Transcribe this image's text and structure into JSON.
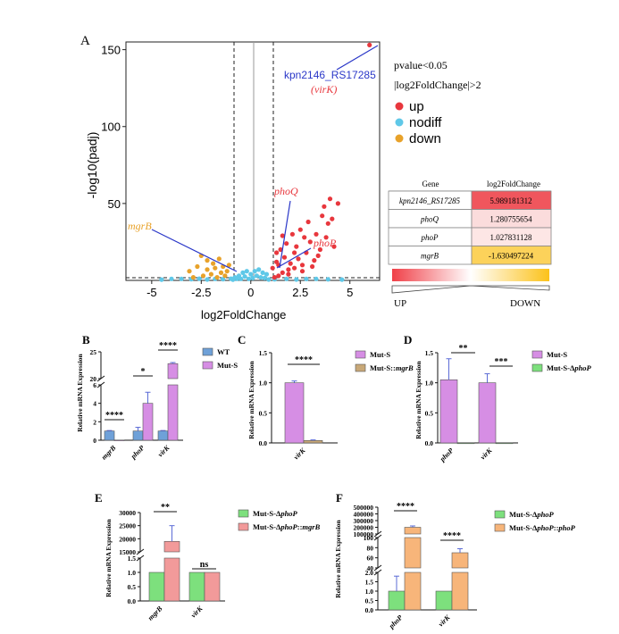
{
  "panel_letters": [
    "A",
    "B",
    "C",
    "D",
    "E",
    "F"
  ],
  "chart_data": [
    {
      "panel": "A",
      "type": "scatter",
      "xlabel": "log2FoldChange",
      "ylabel": "-log10(padj)",
      "xlim": [
        -6.3,
        6.5
      ],
      "ylim": [
        0,
        155
      ],
      "xticks": [
        -5,
        -2.5,
        0,
        2.5,
        5
      ],
      "xtick_labels": [
        "-5",
        "-2.5",
        "0",
        "2.5",
        "5"
      ],
      "yticks": [
        50,
        100,
        150
      ],
      "ytick_labels": [
        "50",
        "100",
        "150"
      ],
      "thresholds": {
        "x": [
          -1,
          1
        ],
        "y": 1.3
      },
      "legend": {
        "lines": [
          "pvalue<0.05",
          "|log2FoldChange|>2"
        ],
        "entries": [
          {
            "label": "up",
            "color": "#e8373d"
          },
          {
            "label": "nodiff",
            "color": "#5fc8e8"
          },
          {
            "label": "down",
            "color": "#e8a22a"
          }
        ]
      },
      "annotations": [
        {
          "text": "kpn2146_RS17285",
          "color": "#2a37c8"
        },
        {
          "text": "(virK)",
          "color": "#e8373d"
        },
        {
          "text": "phoQ",
          "color": "#e8373d"
        },
        {
          "text": "phoP",
          "color": "#e8373d"
        },
        {
          "text": "mgrB",
          "color": "#e8a22a"
        }
      ],
      "highlight_points": [
        {
          "label": "kpn2146_RS17285",
          "x": 5.99,
          "y": 153
        },
        {
          "label": "phoQ",
          "x": 1.28,
          "y": 6
        },
        {
          "label": "phoP",
          "x": 1.03,
          "y": 4
        },
        {
          "label": "mgrB",
          "x": -1.63,
          "y": 3
        }
      ],
      "series": [
        {
          "name": "up",
          "points": [
            [
              1.2,
              2
            ],
            [
              1.4,
              3
            ],
            [
              1.6,
              5
            ],
            [
              1.9,
              4
            ],
            [
              2.2,
              8
            ],
            [
              2.6,
              6
            ],
            [
              3.1,
              9
            ],
            [
              1.3,
              12
            ],
            [
              1.7,
              15
            ],
            [
              2.0,
              11
            ],
            [
              2.4,
              14
            ],
            [
              2.8,
              18
            ],
            [
              3.2,
              13
            ],
            [
              1.5,
              20
            ],
            [
              1.8,
              24
            ],
            [
              2.3,
              22
            ],
            [
              2.7,
              28
            ],
            [
              3.0,
              25
            ],
            [
              3.5,
              20
            ],
            [
              1.1,
              8
            ],
            [
              1.3,
              18
            ],
            [
              2.1,
              30
            ],
            [
              2.5,
              33
            ],
            [
              3.3,
              30
            ],
            [
              2.9,
              38
            ],
            [
              3.6,
              42
            ],
            [
              3.9,
              37
            ],
            [
              4.1,
              40
            ],
            [
              4.0,
              53
            ],
            [
              3.7,
              48
            ],
            [
              4.4,
              50
            ],
            [
              3.8,
              28
            ],
            [
              4.2,
              22
            ],
            [
              1.6,
              29
            ],
            [
              2.2,
              18
            ],
            [
              3.4,
              16
            ],
            [
              2.6,
              10
            ],
            [
              1.9,
              7
            ],
            [
              1.4,
              10
            ],
            [
              5.99,
              153
            ]
          ]
        },
        {
          "name": "down",
          "points": [
            [
              -2.5,
              16
            ],
            [
              -2.2,
              13
            ],
            [
              -1.9,
              11
            ],
            [
              -1.6,
              14
            ],
            [
              -1.4,
              9
            ],
            [
              -1.2,
              6
            ],
            [
              -2.7,
              9
            ],
            [
              -3.1,
              6
            ],
            [
              -2.0,
              4
            ],
            [
              -1.7,
              2
            ],
            [
              -1.3,
              3
            ],
            [
              -2.4,
              3
            ],
            [
              -2.9,
              2
            ],
            [
              -1.5,
              5
            ],
            [
              -2.2,
              7
            ],
            [
              -1.1,
              10
            ],
            [
              -1.8,
              8
            ]
          ]
        },
        {
          "name": "nodiff",
          "points": [
            [
              -4.5,
              0.5
            ],
            [
              -4.0,
              1
            ],
            [
              -3.5,
              1
            ],
            [
              -3.0,
              0.8
            ],
            [
              -2.6,
              1.1
            ],
            [
              -2.2,
              0.6
            ],
            [
              -1.8,
              1
            ],
            [
              -1.4,
              0.8
            ],
            [
              -1.0,
              1.1
            ],
            [
              -0.8,
              2
            ],
            [
              -0.6,
              3
            ],
            [
              -0.4,
              5
            ],
            [
              -0.2,
              6
            ],
            [
              0,
              4
            ],
            [
              0.2,
              6
            ],
            [
              0.4,
              7
            ],
            [
              0.6,
              5
            ],
            [
              0.8,
              4
            ],
            [
              -0.5,
              1
            ],
            [
              0.5,
              2
            ],
            [
              -0.3,
              2.5
            ],
            [
              0.3,
              3
            ],
            [
              -0.7,
              1
            ],
            [
              0.7,
              1.5
            ],
            [
              1.2,
              0.7
            ],
            [
              1.8,
              1
            ],
            [
              2.3,
              0.6
            ],
            [
              2.8,
              0.9
            ],
            [
              3.3,
              1
            ],
            [
              3.9,
              0.7
            ],
            [
              4.6,
              0.5
            ],
            [
              -0.1,
              1
            ],
            [
              0.1,
              1.5
            ],
            [
              -0.9,
              0.5
            ],
            [
              0.9,
              0.6
            ]
          ]
        }
      ]
    },
    {
      "panel": "A-table",
      "type": "table",
      "columns": [
        "Gene",
        "log2FoldChange"
      ],
      "rows": [
        {
          "gene": "kpn2146_RS17285",
          "value": "5.989181312",
          "color": "#f0565d"
        },
        {
          "gene": "phoQ",
          "value": "1.280755654",
          "color": "#fbdcdc"
        },
        {
          "gene": "phoP",
          "value": "1.027831128",
          "color": "#fde6e5"
        },
        {
          "gene": "mgrB",
          "value": "-1.630497224",
          "color": "#fcd25a"
        }
      ],
      "scale_labels": {
        "left": "UP",
        "right": "DOWN"
      }
    },
    {
      "panel": "B",
      "type": "bar",
      "ylabel": "Relative mRNA Expression",
      "categories": [
        "mgrB",
        "phoP",
        "virK"
      ],
      "series": [
        {
          "name": "WT",
          "color": "#6fa1d8",
          "values": [
            1.0,
            1.0,
            1.0
          ],
          "errors": [
            0.05,
            0.4,
            0.05
          ]
        },
        {
          "name": "Mut-S",
          "color": "#d68ee4",
          "values": [
            0.02,
            4.0,
            22.8
          ],
          "errors": [
            0.01,
            1.2,
            0.2
          ]
        }
      ],
      "yticks_lower": [
        "0",
        "2",
        "4",
        "6"
      ],
      "yticks_upper": [
        "20",
        "25"
      ],
      "break": [
        6,
        20
      ],
      "significance": [
        "****",
        "*",
        "****"
      ]
    },
    {
      "panel": "C",
      "type": "bar",
      "ylabel": "Relative mRNA Expression",
      "categories": [
        "virK"
      ],
      "ylim": [
        0,
        1.5
      ],
      "yticks": [
        "0.0",
        "0.5",
        "1.0",
        "1.5"
      ],
      "series": [
        {
          "name": "Mut-S",
          "color": "#d68ee4",
          "values": [
            1.0
          ],
          "errors": [
            0.03
          ]
        },
        {
          "name": "Mut-S::mgrB",
          "color": "#c8a878",
          "values": [
            0.04
          ],
          "errors": [
            0.01
          ]
        }
      ],
      "significance": [
        "****"
      ]
    },
    {
      "panel": "D",
      "type": "bar",
      "ylabel": "Relative mRNA Expression",
      "categories": [
        "phoP",
        "virK"
      ],
      "ylim": [
        0,
        1.5
      ],
      "yticks": [
        "0.0",
        "0.5",
        "1.0",
        "1.5"
      ],
      "series": [
        {
          "name": "Mut-S",
          "color": "#d68ee4",
          "values": [
            1.05,
            1.0
          ],
          "errors": [
            0.35,
            0.15
          ]
        },
        {
          "name": "Mut-S-ΔphoP",
          "color": "#7de07d",
          "values": [
            0.0,
            0.0
          ],
          "errors": [
            0,
            0
          ]
        }
      ],
      "significance": [
        "**",
        "***"
      ]
    },
    {
      "panel": "E",
      "type": "bar",
      "ylabel": "Relative mRNA Expression",
      "categories": [
        "mgrB",
        "virK"
      ],
      "series": [
        {
          "name": "Mut-S-ΔphoP",
          "color": "#7de07d",
          "values": [
            1.0,
            1.0
          ],
          "errors": [
            0.02,
            0.02
          ]
        },
        {
          "name": "Mut-S-ΔphoP::mgrB",
          "color": "#f29a9a",
          "values": [
            19000,
            1.0
          ],
          "errors": [
            6000,
            0.02
          ]
        }
      ],
      "yticks_lower": [
        "0.0",
        "0.5",
        "1.0",
        "1.5"
      ],
      "yticks_upper": [
        "15000",
        "20000",
        "25000",
        "30000"
      ],
      "break": [
        1.5,
        15000
      ],
      "significance": [
        "**",
        "ns"
      ]
    },
    {
      "panel": "F",
      "type": "bar",
      "ylabel": "Relative mRNA Expression",
      "categories": [
        "phoP",
        "virK"
      ],
      "series": [
        {
          "name": "Mut-S-ΔphoP",
          "color": "#7de07d",
          "values": [
            1.0,
            1.0
          ],
          "errors": [
            0.8,
            0.02
          ]
        },
        {
          "name": "Mut-S-ΔphoP::phoP",
          "color": "#f7b57a",
          "values": [
            200000,
            70
          ],
          "errors": [
            20000,
            8
          ]
        }
      ],
      "yticks_lower": [
        "0.0",
        "0.5",
        "1.0",
        "1.5",
        "2.0"
      ],
      "yticks_mid": [
        "40",
        "60",
        "80",
        "100"
      ],
      "yticks_upper": [
        "100000",
        "200000",
        "300000",
        "400000",
        "500000"
      ],
      "significance": [
        "****",
        "****"
      ]
    }
  ]
}
